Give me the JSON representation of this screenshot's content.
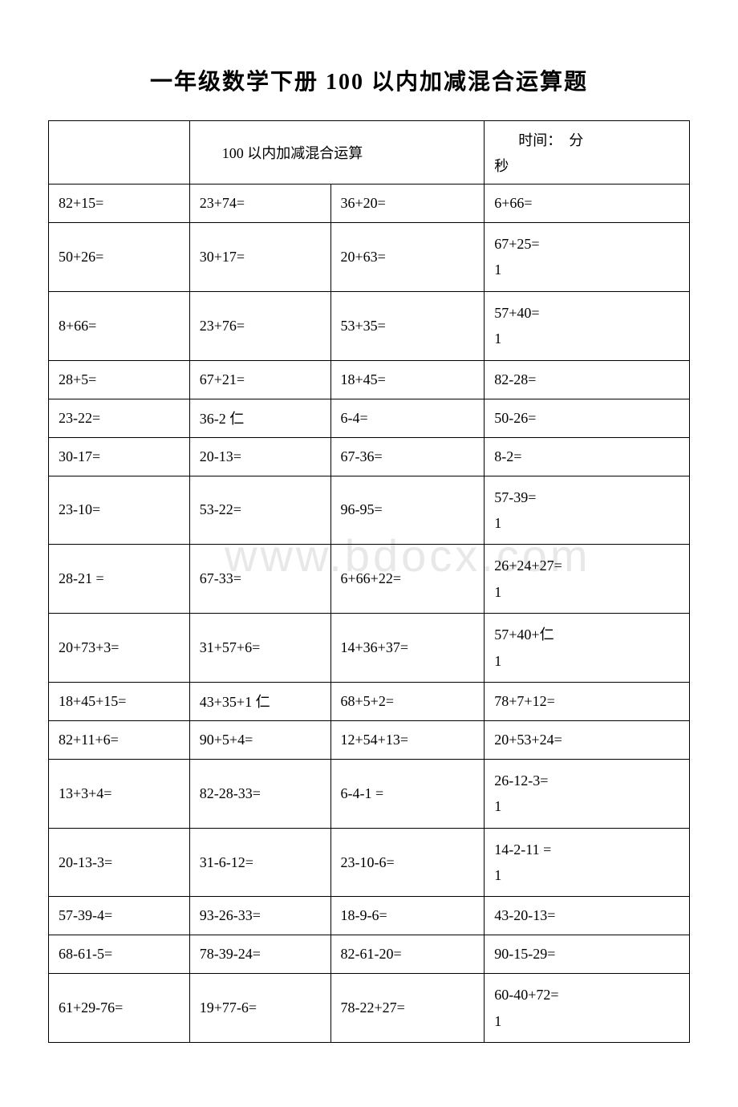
{
  "title": "一年级数学下册 100 以内加减混合运算题",
  "subtitle": "100 以内加减混合运算",
  "timeLabel": "时间：",
  "timeMin": "分",
  "timeSec": "秒",
  "watermark": "www.bdocx.com",
  "rows": [
    [
      "82+15=",
      "23+74=",
      "36+20=",
      "6+66="
    ],
    [
      "50+26=",
      "30+17=",
      "20+63=",
      "67+25=\n1"
    ],
    [
      "8+66=",
      "23+76=",
      "53+35=",
      "57+40=\n1"
    ],
    [
      "28+5=",
      "67+21=",
      "18+45=",
      "82-28="
    ],
    [
      "23-22=",
      "36-2 仁",
      "6-4=",
      "50-26="
    ],
    [
      "30-17=",
      "20-13=",
      "67-36=",
      "8-2="
    ],
    [
      "23-10=",
      "53-22=",
      "96-95=",
      "57-39=\n1"
    ],
    [
      "28-21 =",
      "67-33=",
      "6+66+22=",
      "26+24+27=\n1"
    ],
    [
      "20+73+3=",
      "31+57+6=",
      "14+36+37=",
      "57+40+仁\n1"
    ],
    [
      "18+45+15=",
      "43+35+1 仁",
      "68+5+2=",
      "78+7+12="
    ],
    [
      "82+11+6=",
      "90+5+4=",
      "12+54+13=",
      "20+53+24="
    ],
    [
      "13+3+4=",
      "82-28-33=",
      "6-4-1 =",
      "26-12-3=\n1"
    ],
    [
      "20-13-3=",
      "31-6-12=",
      "23-10-6=",
      "14-2-11 =\n1"
    ],
    [
      "57-39-4=",
      "93-26-33=",
      "18-9-6=",
      "43-20-13="
    ],
    [
      "68-61-5=",
      "78-39-24=",
      "82-61-20=",
      "90-15-29="
    ],
    [
      "61+29-76=",
      "19+77-6=",
      "78-22+27=",
      "60-40+72=\n1"
    ]
  ]
}
